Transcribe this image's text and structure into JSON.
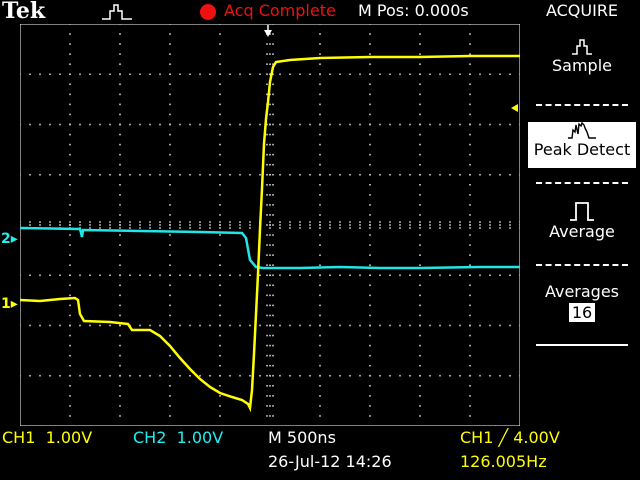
{
  "header": {
    "brand": "Tek",
    "acq_status": "Acq Complete",
    "m_pos": "M Pos: 0.000s",
    "trigger_icon": "trigger-state-icon",
    "status_color": "#ee1111"
  },
  "menu": {
    "title": "ACQUIRE",
    "items": [
      {
        "label": "Sample",
        "icon": "sample-icon",
        "selected": false
      },
      {
        "label": "Peak Detect",
        "icon": "peak-detect-icon",
        "selected": true
      },
      {
        "label": "Average",
        "icon": "average-icon",
        "selected": false
      },
      {
        "label": "Averages",
        "value": "16",
        "selected": false
      }
    ]
  },
  "channels": {
    "ch1": {
      "marker": "1",
      "label": "CH1",
      "scale": "1.00V",
      "color": "#ffff00"
    },
    "ch2": {
      "marker": "2",
      "label": "CH2",
      "scale": "1.00V",
      "color": "#22e6e6"
    }
  },
  "footer": {
    "timebase": "M 500ns",
    "date": "26-Jul-12 14:26",
    "trigger": "CH1 ╱ 4.00V",
    "frequency": "126.005Hz"
  },
  "colors": {
    "grid": "#ffffff",
    "background": "#000000"
  }
}
